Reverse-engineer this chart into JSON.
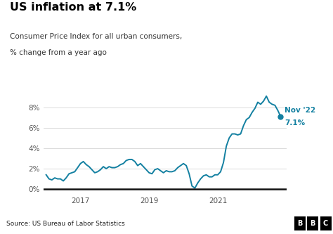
{
  "title": "US inflation at 7.1%",
  "subtitle_line1": "Consumer Price Index for all urban consumers,",
  "subtitle_line2": "% change from a year ago",
  "source": "Source: US Bureau of Labor Statistics",
  "line_color": "#1380A1",
  "background_color": "#FFFFFF",
  "footer_bg": "#BBBBBB",
  "annotation_label": "Nov '22",
  "annotation_value": "7.1%",
  "ylim": [
    -0.5,
    9.8
  ],
  "yticks": [
    0,
    2,
    4,
    6,
    8
  ],
  "ytick_labels": [
    "0%",
    "2%",
    "4%",
    "6%",
    "8%"
  ],
  "xtick_labels": [
    "2017",
    "2019",
    "2021"
  ],
  "values": [
    1.4,
    1.0,
    0.9,
    1.1,
    1.0,
    1.0,
    0.8,
    1.1,
    1.5,
    1.6,
    1.7,
    2.1,
    2.5,
    2.7,
    2.4,
    2.2,
    1.9,
    1.6,
    1.7,
    1.9,
    2.2,
    2.0,
    2.2,
    2.1,
    2.1,
    2.2,
    2.4,
    2.5,
    2.8,
    2.9,
    2.9,
    2.7,
    2.3,
    2.5,
    2.2,
    1.9,
    1.6,
    1.5,
    1.9,
    2.0,
    1.8,
    1.6,
    1.8,
    1.7,
    1.7,
    1.8,
    2.1,
    2.3,
    2.5,
    2.3,
    1.5,
    0.3,
    0.1,
    0.6,
    1.0,
    1.3,
    1.4,
    1.2,
    1.2,
    1.4,
    1.4,
    1.7,
    2.6,
    4.2,
    5.0,
    5.4,
    5.4,
    5.3,
    5.4,
    6.2,
    6.8,
    7.0,
    7.5,
    7.9,
    8.5,
    8.3,
    8.6,
    9.1,
    8.5,
    8.3,
    8.2,
    7.7,
    7.1
  ]
}
